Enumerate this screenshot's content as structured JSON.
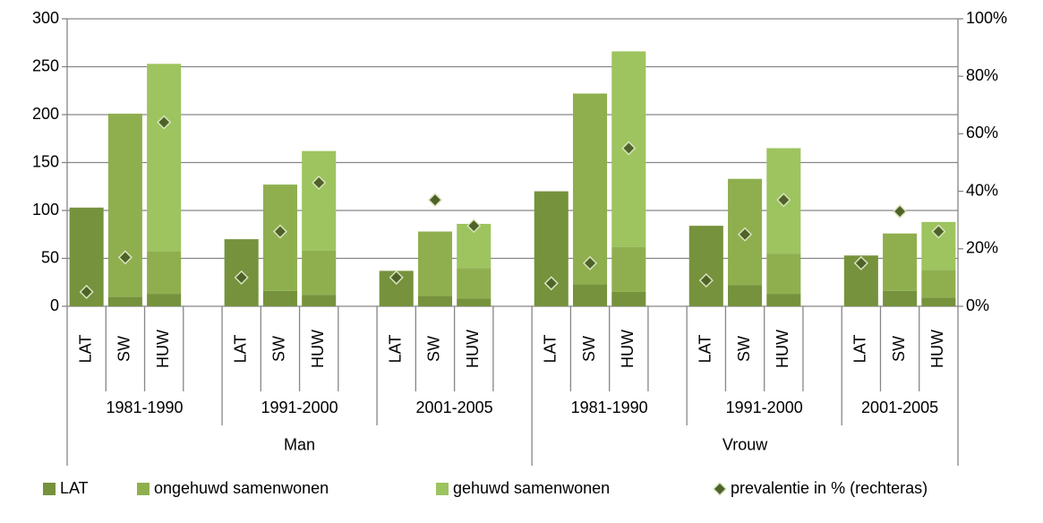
{
  "chart_data": {
    "type": "stacked-bar-with-points",
    "categories": [
      "LAT",
      "SW",
      "HUW",
      "LAT",
      "SW",
      "HUW",
      "LAT",
      "SW",
      "HUW",
      "LAT",
      "SW",
      "HUW",
      "LAT",
      "SW",
      "HUW",
      "LAT",
      "SW",
      "HUW"
    ],
    "category_groups": [
      {
        "name": "Man",
        "subgroups": [
          "1981-1990",
          "1991-2000",
          "2001-2005"
        ]
      },
      {
        "name": "Vrouw",
        "subgroups": [
          "1981-1990",
          "1991-2000",
          "2001-2005"
        ]
      }
    ],
    "series": [
      {
        "name": "LAT",
        "color": "#76923c",
        "values": [
          103,
          10,
          13,
          70,
          16,
          12,
          37,
          11,
          8,
          120,
          23,
          15,
          84,
          22,
          13,
          53,
          16,
          9
        ]
      },
      {
        "name": "ongehuwd samenwonen",
        "color": "#8faf4f",
        "values": [
          null,
          191,
          44,
          null,
          111,
          46,
          null,
          67,
          32,
          null,
          199,
          47,
          null,
          111,
          42,
          null,
          60,
          29
        ]
      },
      {
        "name": "gehuwd samenwonen",
        "color": "#9dc45f",
        "values": [
          null,
          null,
          196,
          null,
          null,
          104,
          null,
          null,
          46,
          null,
          null,
          204,
          null,
          null,
          110,
          null,
          null,
          50
        ]
      },
      {
        "name": "prevalentie in % (rechteras)",
        "color": "#4f6228",
        "axis": "y2",
        "values": [
          5,
          17,
          64,
          10,
          26,
          43,
          10,
          37,
          28,
          8,
          15,
          55,
          9,
          25,
          37,
          15,
          33,
          26
        ]
      }
    ],
    "ylim": [
      0,
      300
    ],
    "yticks": [
      0,
      50,
      100,
      150,
      200,
      250,
      300
    ],
    "y2lim": [
      0,
      100
    ],
    "y2ticks": [
      {
        "value": 0,
        "label": "0%"
      },
      {
        "value": 20,
        "label": "20%"
      },
      {
        "value": 40,
        "label": "40%"
      },
      {
        "value": 60,
        "label": "60%"
      },
      {
        "value": 80,
        "label": "80%"
      },
      {
        "value": 100,
        "label": "100%"
      }
    ],
    "grid": true,
    "legend": "bottom"
  }
}
